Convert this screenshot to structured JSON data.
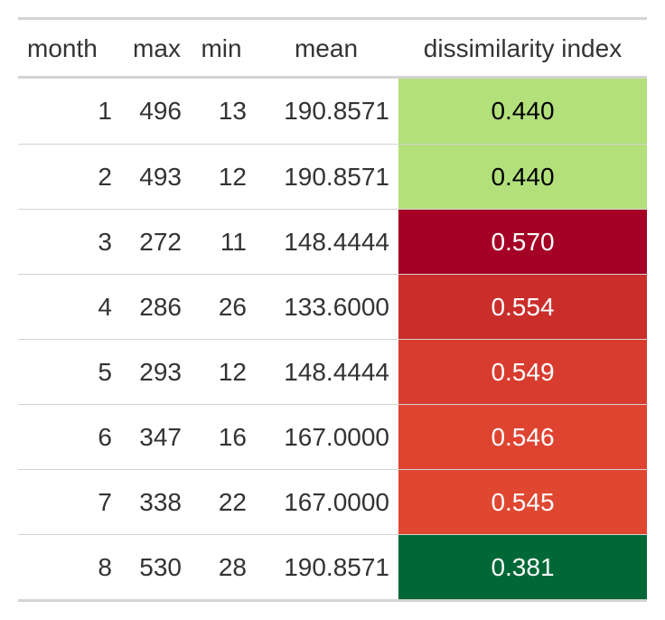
{
  "chart_data": {
    "type": "table",
    "columns": [
      "month",
      "max",
      "min",
      "mean",
      "dissimilarity index"
    ],
    "rows": [
      {
        "month": "1",
        "max": "496",
        "min": "13",
        "mean": "190.8571",
        "dissimilarity": "0.440",
        "bg": "#b3e07b",
        "fg": "#000000"
      },
      {
        "month": "2",
        "max": "493",
        "min": "12",
        "mean": "190.8571",
        "dissimilarity": "0.440",
        "bg": "#b3e07b",
        "fg": "#000000"
      },
      {
        "month": "3",
        "max": "272",
        "min": "11",
        "mean": "148.4444",
        "dissimilarity": "0.570",
        "bg": "#a50026",
        "fg": "#ffffff"
      },
      {
        "month": "4",
        "max": "286",
        "min": "26",
        "mean": "133.6000",
        "dissimilarity": "0.554",
        "bg": "#ca2e2b",
        "fg": "#ffffff"
      },
      {
        "month": "5",
        "max": "293",
        "min": "12",
        "mean": "148.4444",
        "dissimilarity": "0.549",
        "bg": "#d83c2e",
        "fg": "#ffffff"
      },
      {
        "month": "6",
        "max": "347",
        "min": "16",
        "mean": "167.0000",
        "dissimilarity": "0.546",
        "bg": "#df4430",
        "fg": "#ffffff"
      },
      {
        "month": "7",
        "max": "338",
        "min": "22",
        "mean": "167.0000",
        "dissimilarity": "0.545",
        "bg": "#e04731",
        "fg": "#ffffff"
      },
      {
        "month": "8",
        "max": "530",
        "min": "28",
        "mean": "190.8571",
        "dissimilarity": "0.381",
        "bg": "#006837",
        "fg": "#ffffff"
      }
    ]
  }
}
